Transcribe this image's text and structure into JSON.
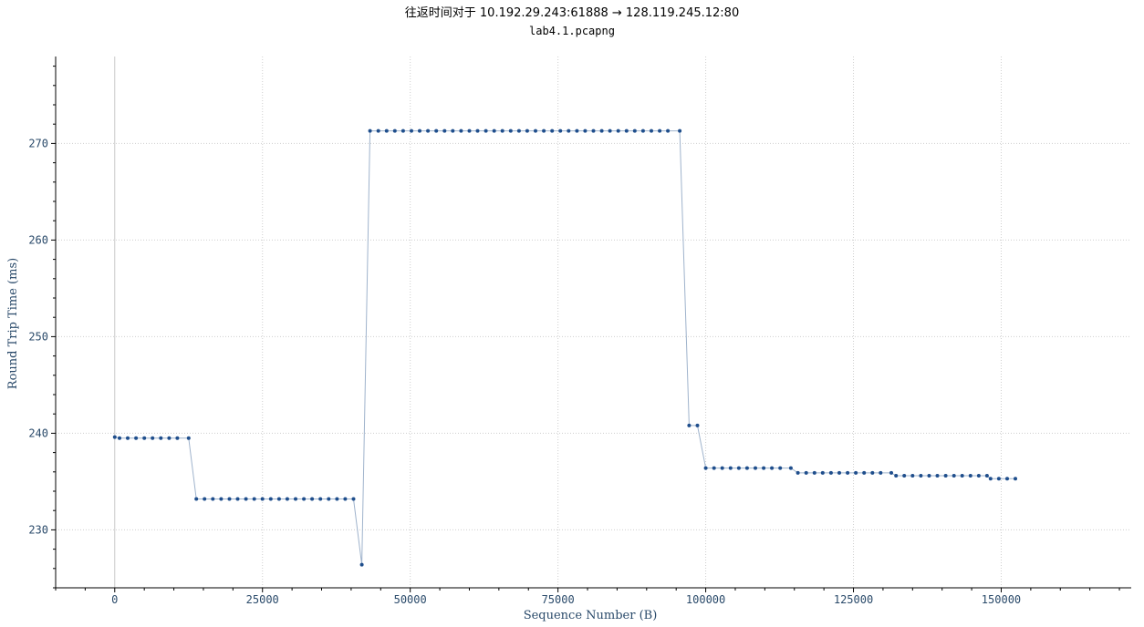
{
  "chart_data": {
    "type": "line",
    "title": "往返时间对于 10.192.29.243:61888 → 128.119.245.12:80",
    "subtitle": "lab4.1.pcapng",
    "xlabel": "Sequence Number (B)",
    "ylabel": "Round Trip Time (ms)",
    "xlim": [
      -10000,
      172000
    ],
    "ylim": [
      224,
      279
    ],
    "xticks": [
      0,
      25000,
      50000,
      75000,
      100000,
      125000,
      150000
    ],
    "yticks": [
      230,
      240,
      250,
      260,
      270
    ],
    "grid": true,
    "series": [
      {
        "marker": "dot",
        "color": "#1f4e8c",
        "line_color": "#9fb3cc",
        "points": [
          [
            0,
            239.6
          ],
          [
            800,
            239.5
          ],
          [
            2200,
            239.5
          ],
          [
            3600,
            239.5
          ],
          [
            5000,
            239.5
          ],
          [
            6400,
            239.5
          ],
          [
            7800,
            239.5
          ],
          [
            9200,
            239.5
          ],
          [
            10600,
            239.5
          ],
          [
            12500,
            239.5
          ],
          [
            13800,
            233.2
          ],
          [
            15200,
            233.2
          ],
          [
            16600,
            233.2
          ],
          [
            18000,
            233.2
          ],
          [
            19400,
            233.2
          ],
          [
            20800,
            233.2
          ],
          [
            22200,
            233.2
          ],
          [
            23600,
            233.2
          ],
          [
            25000,
            233.2
          ],
          [
            26400,
            233.2
          ],
          [
            27800,
            233.2
          ],
          [
            29200,
            233.2
          ],
          [
            30600,
            233.2
          ],
          [
            32000,
            233.2
          ],
          [
            33400,
            233.2
          ],
          [
            34800,
            233.2
          ],
          [
            36200,
            233.2
          ],
          [
            37600,
            233.2
          ],
          [
            39000,
            233.2
          ],
          [
            40400,
            233.2
          ],
          [
            41800,
            226.4
          ],
          [
            43200,
            271.3
          ],
          [
            44600,
            271.3
          ],
          [
            46000,
            271.3
          ],
          [
            47400,
            271.3
          ],
          [
            48800,
            271.3
          ],
          [
            50200,
            271.3
          ],
          [
            51600,
            271.3
          ],
          [
            53000,
            271.3
          ],
          [
            54400,
            271.3
          ],
          [
            55800,
            271.3
          ],
          [
            57200,
            271.3
          ],
          [
            58600,
            271.3
          ],
          [
            60000,
            271.3
          ],
          [
            61400,
            271.3
          ],
          [
            62800,
            271.3
          ],
          [
            64200,
            271.3
          ],
          [
            65600,
            271.3
          ],
          [
            67000,
            271.3
          ],
          [
            68400,
            271.3
          ],
          [
            69800,
            271.3
          ],
          [
            71200,
            271.3
          ],
          [
            72600,
            271.3
          ],
          [
            74000,
            271.3
          ],
          [
            75400,
            271.3
          ],
          [
            76800,
            271.3
          ],
          [
            78200,
            271.3
          ],
          [
            79600,
            271.3
          ],
          [
            81000,
            271.3
          ],
          [
            82400,
            271.3
          ],
          [
            83800,
            271.3
          ],
          [
            85200,
            271.3
          ],
          [
            86600,
            271.3
          ],
          [
            88000,
            271.3
          ],
          [
            89400,
            271.3
          ],
          [
            90800,
            271.3
          ],
          [
            92200,
            271.3
          ],
          [
            93600,
            271.3
          ],
          [
            95600,
            271.3
          ],
          [
            97200,
            240.8
          ],
          [
            98600,
            240.8
          ],
          [
            100000,
            236.4
          ],
          [
            101400,
            236.4
          ],
          [
            102800,
            236.4
          ],
          [
            104200,
            236.4
          ],
          [
            105600,
            236.4
          ],
          [
            107000,
            236.4
          ],
          [
            108400,
            236.4
          ],
          [
            109800,
            236.4
          ],
          [
            111200,
            236.4
          ],
          [
            112600,
            236.4
          ],
          [
            114400,
            236.4
          ],
          [
            115600,
            235.9
          ],
          [
            117000,
            235.9
          ],
          [
            118400,
            235.9
          ],
          [
            119800,
            235.9
          ],
          [
            121200,
            235.9
          ],
          [
            122600,
            235.9
          ],
          [
            124000,
            235.9
          ],
          [
            125400,
            235.9
          ],
          [
            126800,
            235.9
          ],
          [
            128200,
            235.9
          ],
          [
            129600,
            235.9
          ],
          [
            131400,
            235.9
          ],
          [
            132200,
            235.6
          ],
          [
            133600,
            235.6
          ],
          [
            135000,
            235.6
          ],
          [
            136400,
            235.6
          ],
          [
            137800,
            235.6
          ],
          [
            139200,
            235.6
          ],
          [
            140600,
            235.6
          ],
          [
            142000,
            235.6
          ],
          [
            143400,
            235.6
          ],
          [
            144800,
            235.6
          ],
          [
            146200,
            235.6
          ],
          [
            147600,
            235.6
          ],
          [
            148200,
            235.3
          ],
          [
            149600,
            235.3
          ],
          [
            151000,
            235.3
          ],
          [
            152400,
            235.3
          ]
        ]
      }
    ]
  }
}
